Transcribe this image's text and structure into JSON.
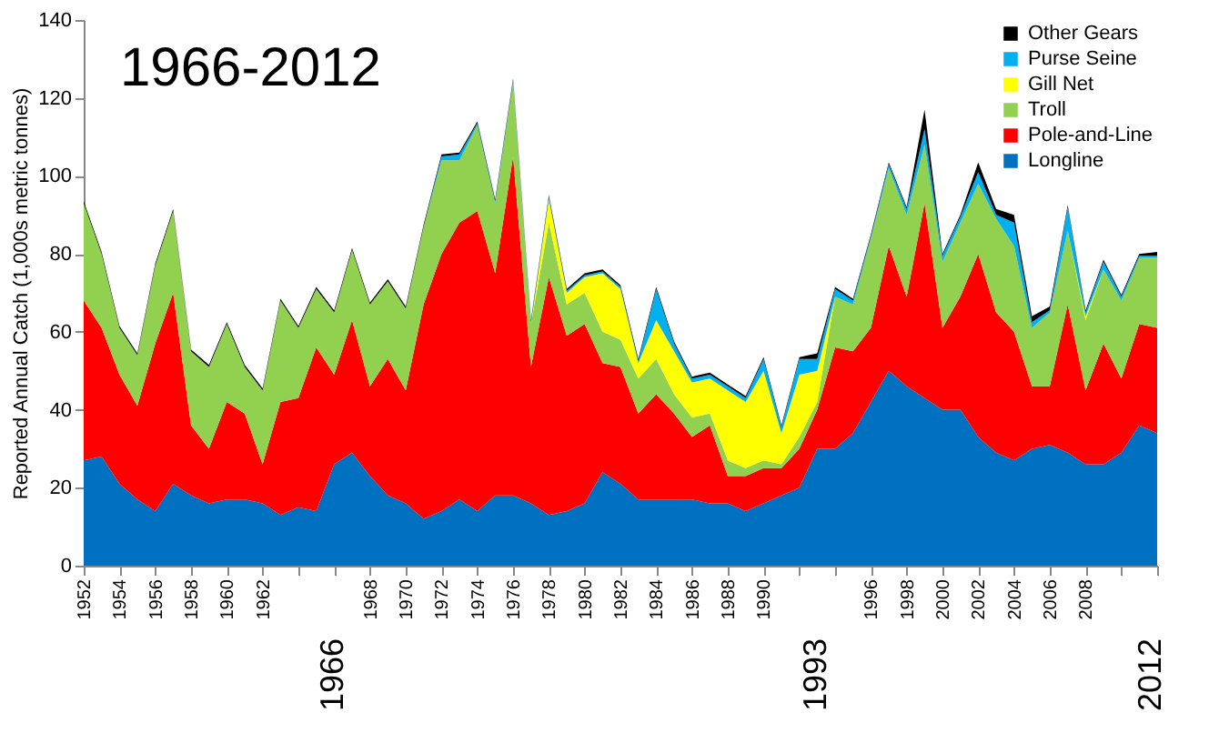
{
  "chart_data": {
    "type": "area",
    "stacked": true,
    "title": "1966-2012",
    "ylabel": "Reported Annual Catch (1,000s metric tonnes)",
    "x": [
      1952,
      1953,
      1954,
      1955,
      1956,
      1957,
      1958,
      1959,
      1960,
      1961,
      1962,
      1963,
      1964,
      1965,
      1966,
      1967,
      1968,
      1969,
      1970,
      1971,
      1972,
      1973,
      1974,
      1975,
      1976,
      1977,
      1978,
      1979,
      1980,
      1981,
      1982,
      1983,
      1984,
      1985,
      1986,
      1987,
      1988,
      1989,
      1990,
      1991,
      1992,
      1993,
      1994,
      1995,
      1996,
      1997,
      1998,
      1999,
      2000,
      2001,
      2002,
      2003,
      2004,
      2005,
      2006,
      2007,
      2008,
      2009,
      2010,
      2011,
      2012
    ],
    "xlim": [
      1952,
      2012
    ],
    "xticks": [
      1952,
      1954,
      1956,
      1958,
      1960,
      1962,
      {
        "value": 1964,
        "label": null
      },
      {
        "value": 1966,
        "label": null
      },
      1968,
      1970,
      1972,
      1974,
      1976,
      1978,
      1980,
      1982,
      1984,
      1986,
      1988,
      1990,
      {
        "value": 1992,
        "label": null
      },
      {
        "value": 1994,
        "label": null
      },
      1996,
      1998,
      2000,
      2002,
      2004,
      2006,
      2008,
      {
        "value": 2010,
        "label": null
      },
      {
        "value": 2012,
        "label": null
      }
    ],
    "ylim": [
      0,
      140
    ],
    "yticks": [
      0,
      20,
      40,
      60,
      80,
      100,
      120,
      140
    ],
    "grid": false,
    "legend": "top right",
    "series": [
      {
        "name": "Longline",
        "color": "#0070c0",
        "values": [
          27,
          28,
          21,
          17,
          14,
          21,
          18,
          16,
          17,
          17,
          16,
          13,
          15,
          14,
          26,
          29,
          23,
          18,
          16,
          12,
          14,
          17,
          14,
          18,
          18,
          16,
          13,
          14,
          16,
          24,
          21,
          17,
          17,
          17,
          17,
          16,
          16,
          14,
          16,
          18,
          20,
          30,
          30,
          34,
          42,
          50,
          46,
          43,
          40,
          40,
          33,
          29,
          27,
          30,
          31,
          29,
          26,
          26,
          29,
          36,
          34
        ]
      },
      {
        "name": "Pole-and-Line",
        "color": "#ff0000",
        "values": [
          41,
          33,
          28,
          24,
          43,
          49,
          18,
          14,
          25,
          22,
          10,
          29,
          28,
          42,
          23,
          34,
          23,
          35,
          29,
          55,
          66,
          71,
          77,
          57,
          87,
          35,
          61,
          45,
          46,
          28,
          30,
          22,
          27,
          22,
          16,
          20,
          7,
          9,
          9,
          7,
          10,
          10,
          26,
          21,
          19,
          32,
          23,
          50,
          21,
          29,
          47,
          36,
          33,
          16,
          15,
          38,
          19,
          31,
          19,
          26,
          27
        ]
      },
      {
        "name": "Troll",
        "color": "#92d050",
        "values": [
          25,
          19,
          12,
          13,
          20,
          21,
          19,
          21,
          20,
          12,
          19,
          26,
          18,
          15,
          16,
          18,
          21,
          20,
          21,
          20,
          24,
          16,
          22,
          18,
          19,
          11,
          14,
          8,
          8,
          8,
          7,
          9,
          9,
          5,
          5,
          3,
          4,
          2,
          2,
          1,
          3,
          2,
          13,
          12,
          23,
          20,
          21,
          15,
          17,
          19,
          18,
          24,
          22,
          15,
          19,
          19,
          18,
          19,
          20,
          17,
          18
        ]
      },
      {
        "name": "Gill Net",
        "color": "#ffff00",
        "values": [
          0,
          0,
          0,
          0,
          0,
          0,
          0,
          0,
          0,
          0,
          0,
          0,
          0,
          0,
          0,
          0,
          0,
          0,
          0,
          0,
          0,
          0,
          0,
          0,
          0,
          0,
          6,
          3,
          4,
          15,
          13,
          4,
          10,
          11,
          9,
          9,
          18,
          17,
          23,
          8,
          16,
          8,
          0,
          0,
          0,
          0,
          0,
          0,
          0,
          0,
          0,
          0,
          0,
          0,
          0,
          0,
          1,
          0,
          0,
          0,
          0
        ]
      },
      {
        "name": "Purse Seine",
        "color": "#00b0f0",
        "values": [
          0,
          0,
          0,
          0,
          0,
          0,
          0,
          0,
          0,
          0,
          0,
          0,
          0,
          0,
          0,
          0,
          0,
          0,
          0,
          0,
          1,
          1.5,
          0.5,
          0.5,
          0.5,
          0.5,
          0.5,
          0.5,
          0.5,
          0.5,
          0.5,
          0.5,
          8,
          2,
          1,
          1,
          1,
          1,
          3,
          1.5,
          4,
          3,
          2,
          1,
          0.5,
          1,
          1.5,
          4,
          1.5,
          1.5,
          3,
          1,
          6,
          1.5,
          0.5,
          6,
          1,
          2,
          1,
          0.5,
          0.5
        ]
      },
      {
        "name": "Other Gears",
        "color": "#000000",
        "values": [
          0.5,
          0.5,
          0.5,
          0.5,
          0.5,
          0.5,
          0.5,
          0.5,
          0.5,
          0.5,
          0.5,
          0.5,
          0.5,
          0.5,
          0.5,
          0.5,
          0.5,
          0.5,
          0.5,
          0.5,
          0.5,
          0.5,
          0.5,
          0.5,
          0.5,
          0.5,
          0.5,
          0.5,
          0.5,
          0.5,
          0.5,
          0.5,
          0.5,
          0.5,
          0.5,
          0.5,
          0.5,
          0.5,
          0.5,
          0.5,
          0.5,
          1.5,
          0.5,
          0.5,
          0.5,
          0.5,
          0.5,
          5,
          0.5,
          0.5,
          2.5,
          1.5,
          2,
          1.5,
          1,
          0.5,
          0.5,
          0.5,
          0.5,
          0.5,
          1
        ]
      }
    ],
    "annotations": [
      "1966",
      "1993",
      "2012"
    ]
  }
}
